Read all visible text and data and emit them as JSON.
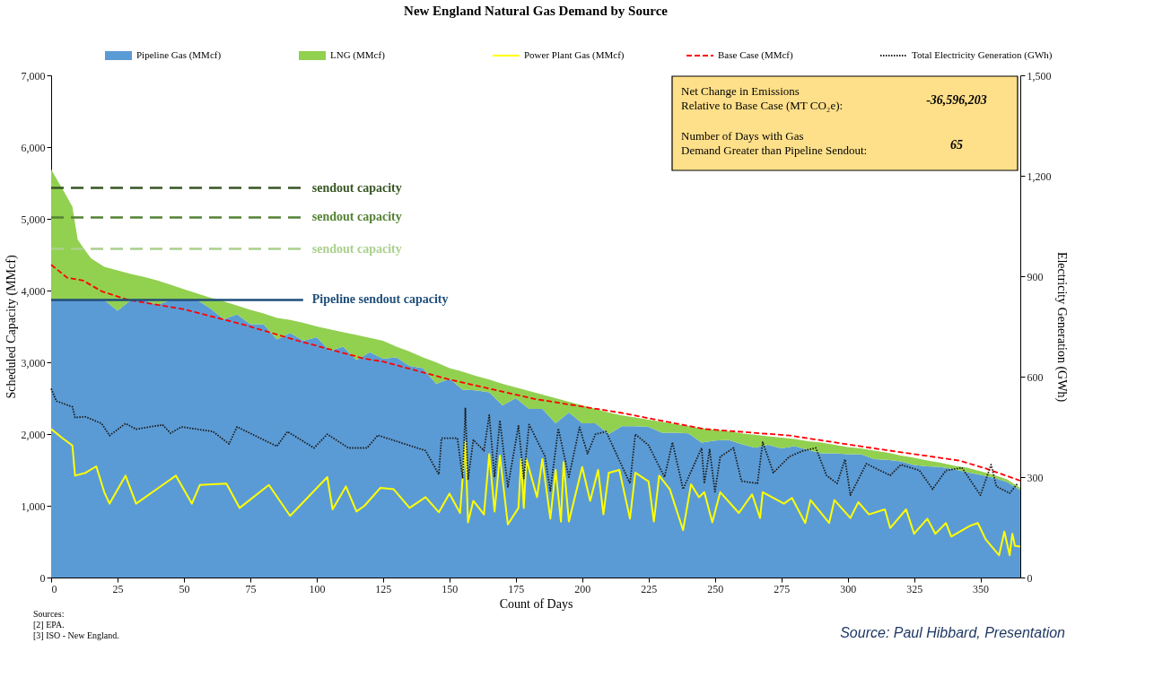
{
  "chart_data": {
    "type": "area",
    "title": "New England Natural Gas Demand by Source",
    "xlabel": "Count of Days",
    "ylabel": "Scheduled Capacity (MMcf)",
    "y2label": "Electricity Generation (GWh)",
    "stacked": true,
    "legend": "top",
    "grid": false,
    "xlim": [
      0,
      365
    ],
    "xticks": [
      0,
      25,
      50,
      75,
      100,
      125,
      150,
      175,
      200,
      225,
      250,
      275,
      300,
      325,
      350
    ],
    "ylim": [
      0,
      7000
    ],
    "yticks": [
      0,
      {
        "value": 1000,
        "label": "1,000"
      },
      {
        "value": 2000,
        "label": "2,000"
      },
      {
        "value": 3000,
        "label": "3,000"
      },
      {
        "value": 4000,
        "label": "4,000"
      },
      {
        "value": 5000,
        "label": "5,000"
      },
      {
        "value": 6000,
        "label": "6,000"
      },
      {
        "value": 7000,
        "label": "7,000"
      }
    ],
    "y2lim": [
      0,
      1500
    ],
    "y2ticks": [
      0,
      300,
      600,
      900,
      {
        "value": 1200,
        "label": "1,200"
      },
      {
        "value": 1500,
        "label": "1,500"
      }
    ],
    "x": [
      0,
      2,
      5,
      8,
      10,
      13,
      15,
      20,
      25,
      30,
      35,
      40,
      45,
      50,
      55,
      60,
      65,
      70,
      75,
      80,
      85,
      90,
      95,
      100,
      105,
      110,
      115,
      120,
      125,
      130,
      135,
      140,
      145,
      150,
      155,
      160,
      165,
      170,
      175,
      180,
      185,
      190,
      195,
      200,
      205,
      210,
      215,
      220,
      225,
      230,
      235,
      240,
      245,
      250,
      255,
      260,
      265,
      270,
      275,
      280,
      285,
      290,
      295,
      300,
      305,
      310,
      315,
      320,
      325,
      330,
      335,
      340,
      345,
      350,
      355,
      360,
      365
    ],
    "series": [
      {
        "name": "Pipeline Gas (MMcf)",
        "color": "#5b9bd5",
        "values": [
          3870,
          3870,
          3870,
          3870,
          3870,
          3870,
          3870,
          3870,
          3720,
          3870,
          3870,
          3800,
          3870,
          3870,
          3870,
          3750,
          3600,
          3670,
          3530,
          3530,
          3320,
          3410,
          3300,
          3350,
          3160,
          3220,
          3030,
          3140,
          3050,
          3070,
          2950,
          2920,
          2700,
          2770,
          2620,
          2610,
          2580,
          2400,
          2500,
          2350,
          2350,
          2150,
          2300,
          2150,
          2150,
          2000,
          2110,
          2110,
          2100,
          2020,
          2020,
          2010,
          1880,
          1910,
          1920,
          1860,
          1810,
          1850,
          1800,
          1830,
          1780,
          1730,
          1730,
          1720,
          1720,
          1650,
          1640,
          1620,
          1570,
          1550,
          1540,
          1510,
          1470,
          1430,
          1390,
          1330,
          1220
        ]
      },
      {
        "name": "LNG (MMcf)",
        "color": "#92d050",
        "values": [
          1820,
          1690,
          1500,
          1300,
          840,
          680,
          580,
          460,
          560,
          360,
          320,
          340,
          210,
          150,
          90,
          150,
          250,
          120,
          200,
          150,
          300,
          180,
          250,
          150,
          300,
          200,
          350,
          200,
          250,
          150,
          200,
          150,
          300,
          150,
          250,
          200,
          180,
          300,
          150,
          250,
          200,
          350,
          150,
          250,
          200,
          300,
          150,
          120,
          100,
          150,
          120,
          100,
          200,
          150,
          120,
          150,
          180,
          120,
          150,
          100,
          120,
          150,
          120,
          100,
          80,
          120,
          100,
          80,
          100,
          80,
          60,
          50,
          60,
          50,
          40,
          40,
          30
        ]
      },
      {
        "name": "Power Plant Gas (MMcf)",
        "type": "line",
        "color": "#ffff00",
        "line_style": "solid",
        "x": [
          0,
          4,
          8,
          9,
          13,
          17,
          20,
          22,
          28,
          32,
          42,
          47,
          53,
          56,
          66,
          71,
          82,
          90,
          104,
          106,
          111,
          115,
          118,
          124,
          129,
          135,
          141,
          146,
          150,
          154,
          156,
          157,
          159,
          163,
          165,
          167,
          169,
          172,
          176,
          177,
          178,
          179,
          183,
          185,
          188,
          190,
          192,
          193,
          195,
          200,
          203,
          206,
          208,
          210,
          214,
          218,
          220,
          225,
          227,
          229,
          233,
          238,
          241,
          244,
          246,
          249,
          252,
          259,
          264,
          267,
          268,
          276,
          279,
          284,
          286,
          293,
          295,
          301,
          304,
          308,
          314,
          316,
          322,
          325,
          330,
          333,
          337,
          339,
          346,
          349,
          352,
          357,
          359,
          361,
          362,
          363,
          365
        ],
        "values": [
          2070,
          1950,
          1840,
          1420,
          1460,
          1550,
          1190,
          1030,
          1420,
          1030,
          1290,
          1420,
          1030,
          1290,
          1310,
          970,
          1290,
          860,
          1400,
          950,
          1270,
          920,
          1000,
          1250,
          1230,
          970,
          1120,
          910,
          1170,
          900,
          1890,
          770,
          1070,
          880,
          1720,
          920,
          1700,
          740,
          970,
          1650,
          970,
          1650,
          1120,
          1650,
          820,
          1500,
          780,
          1610,
          780,
          1540,
          1070,
          1500,
          880,
          1460,
          1500,
          820,
          1460,
          1340,
          780,
          1420,
          1230,
          660,
          1300,
          1120,
          1190,
          770,
          1190,
          900,
          1160,
          830,
          1190,
          1030,
          1110,
          760,
          1080,
          760,
          1080,
          830,
          1050,
          880,
          950,
          690,
          950,
          610,
          820,
          610,
          760,
          570,
          720,
          760,
          530,
          310,
          640,
          310,
          610,
          440,
          430
        ]
      },
      {
        "name": "Base Case (MMcf)",
        "type": "line",
        "color": "#ff0000",
        "line_style": "dashed",
        "x": [
          0,
          6,
          12,
          19,
          29,
          50,
          72,
          93,
          118,
          125,
          150,
          182,
          214,
          246,
          278,
          310,
          342,
          352,
          365
        ],
        "values": [
          4360,
          4180,
          4140,
          3990,
          3870,
          3740,
          3530,
          3300,
          3050,
          3010,
          2760,
          2490,
          2300,
          2070,
          1980,
          1800,
          1630,
          1520,
          1350
        ]
      },
      {
        "name": "Total Electricity Generation (GWh)",
        "type": "line",
        "axis": "y2",
        "color": "#1a1a1a",
        "line_style": "dotted",
        "x": [
          0,
          2,
          8,
          9,
          13,
          19,
          22,
          28,
          32,
          42,
          45,
          49,
          61,
          67,
          70,
          85,
          89,
          99,
          104,
          112,
          119,
          123,
          141,
          146,
          147,
          153,
          155,
          156,
          157,
          159,
          163,
          165,
          167,
          169,
          172,
          176,
          178,
          180,
          186,
          188,
          191,
          195,
          199,
          202,
          205,
          209,
          218,
          220,
          225,
          231,
          234,
          238,
          245,
          246,
          248,
          250,
          252,
          257,
          260,
          266,
          268,
          272,
          278,
          283,
          288,
          292,
          296,
          299,
          301,
          307,
          316,
          320,
          327,
          332,
          337,
          343,
          350,
          354,
          356,
          361,
          364
        ],
        "values": [
          564,
          527,
          510,
          478,
          480,
          460,
          424,
          460,
          443,
          456,
          431,
          450,
          436,
          399,
          450,
          392,
          436,
          387,
          428,
          387,
          387,
          425,
          379,
          308,
          416,
          416,
          296,
          505,
          292,
          411,
          379,
          485,
          300,
          469,
          271,
          453,
          296,
          457,
          362,
          259,
          445,
          300,
          449,
          370,
          428,
          436,
          281,
          428,
          395,
          300,
          404,
          264,
          387,
          281,
          382,
          256,
          361,
          387,
          288,
          281,
          404,
          313,
          361,
          378,
          387,
          305,
          281,
          353,
          246,
          340,
          305,
          337,
          320,
          264,
          320,
          328,
          246,
          337,
          272,
          252,
          281
        ]
      }
    ],
    "ref_lines": [
      {
        "axis": "y",
        "value": 5430,
        "label": "sendout capacity",
        "color": "#375623",
        "line_style": "dashed"
      },
      {
        "axis": "y",
        "value": 5020,
        "label": "sendout capacity",
        "color": "#548235",
        "line_style": "dashed"
      },
      {
        "axis": "y",
        "value": 4580,
        "label": "sendout capacity",
        "color": "#a9d08e",
        "line_style": "dashed"
      },
      {
        "axis": "y",
        "value": 3870,
        "label": "Pipeline sendout capacity",
        "color": "#1f4e79",
        "line_style": "solid"
      }
    ],
    "annotations": [
      "Net Change in Emissions\nRelative to Base Case (MT CO₂e):",
      "-36,596,203",
      "Number of Days with Gas\nDemand Greater than Pipeline Sendout:",
      "65",
      "Sources:\n[2] EPA.\n[3] ISO - New England.",
      "Source: Paul Hibbard, Presentation"
    ]
  }
}
